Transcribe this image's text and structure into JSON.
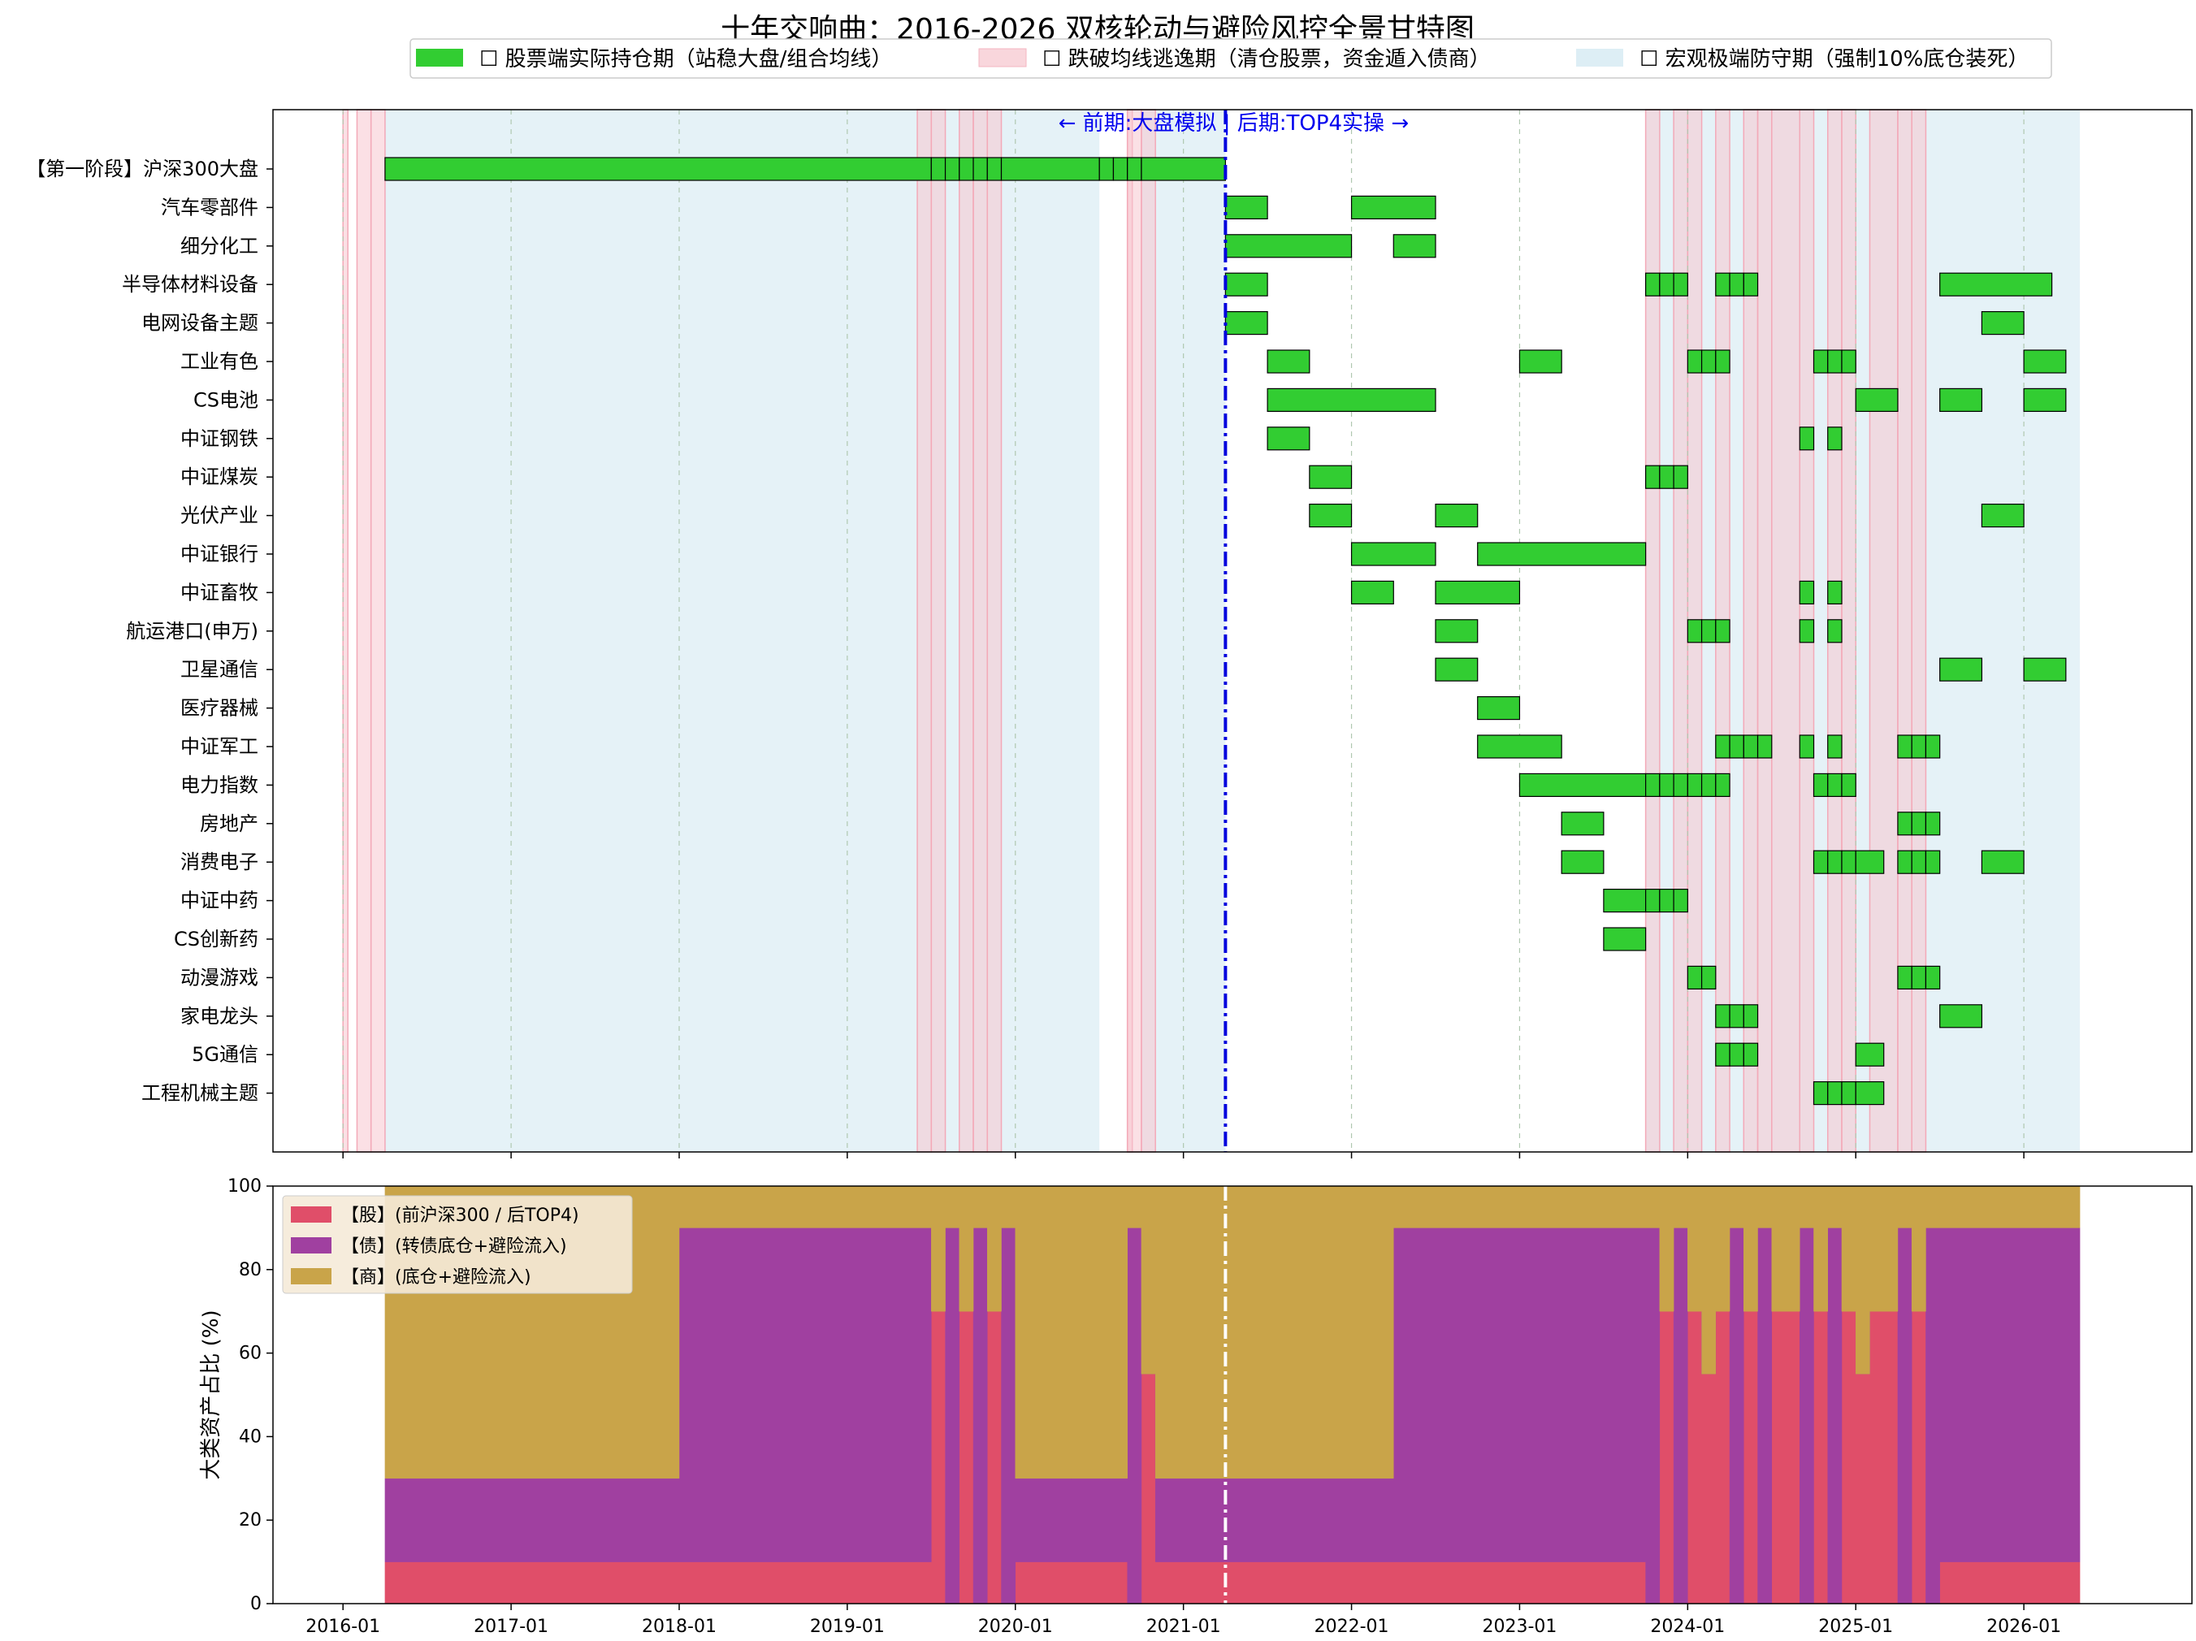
{
  "chart_data": [
    {
      "type": "gantt",
      "title": "十年交响曲：2016-2026 双核轮动与避险风控全景甘特图",
      "legend_placement": "top-center",
      "legend": [
        {
          "label": "☐ 股票端实际持仓期（站稳大盘/组合均线）",
          "color": "#32cd32"
        },
        {
          "label": "☐ 跌破均线逃逸期（清仓股票，资金遁入债商）",
          "color": "#f9d6dc"
        },
        {
          "label": "☐ 宏观极端防守期（强制10%底仓装死）",
          "color": "#ddeef5"
        }
      ],
      "x_ticks": [
        "2016-01",
        "2017-01",
        "2018-01",
        "2019-01",
        "2020-01",
        "2021-01",
        "2022-01",
        "2023-01",
        "2024-01",
        "2025-01",
        "2026-01"
      ],
      "xlim": [
        "2015-08",
        "2027-01"
      ],
      "divider": {
        "date": "2021-04",
        "label": "← 前期:大盘模拟 | 后期:TOP4实操 →"
      },
      "categories": [
        "【第一阶段】沪深300大盘",
        "汽车零部件",
        "细分化工",
        "半导体材料设备",
        "电网设备主题",
        "工业有色",
        "CS电池",
        "中证钢铁",
        "中证煤炭",
        "光伏产业",
        "中证银行",
        "中证畜牧",
        "航运港口(申万)",
        "卫星通信",
        "医疗器械",
        "中证军工",
        "电力指数",
        "房地产",
        "消费电子",
        "中证中药",
        "CS创新药",
        "动漫游戏",
        "家电龙头",
        "5G通信",
        "工程机械主题"
      ],
      "defense_periods": [
        [
          "2016-04",
          "2020-07"
        ],
        [
          "2020-10",
          "2021-04"
        ],
        [
          "2023-10",
          "2025-07"
        ],
        [
          "2025-07",
          "2026-05"
        ]
      ],
      "escape_periods": [
        [
          "2016-01",
          "2016-01"
        ],
        [
          "2016-02",
          "2016-03"
        ],
        [
          "2016-03",
          "2016-04"
        ],
        [
          "2019-06",
          "2019-07"
        ],
        [
          "2019-07",
          "2019-08"
        ],
        [
          "2019-09",
          "2019-10"
        ],
        [
          "2019-10",
          "2019-11"
        ],
        [
          "2019-11",
          "2019-12"
        ],
        [
          "2020-09",
          "2020-09"
        ],
        [
          "2020-09",
          "2020-10"
        ],
        [
          "2020-10",
          "2020-11"
        ],
        [
          "2023-10",
          "2023-11"
        ],
        [
          "2023-12",
          "2024-01"
        ],
        [
          "2024-01",
          "2024-02"
        ],
        [
          "2024-03",
          "2024-04"
        ],
        [
          "2024-05",
          "2024-06"
        ],
        [
          "2024-06",
          "2024-07"
        ],
        [
          "2024-07",
          "2024-09"
        ],
        [
          "2024-09",
          "2024-10"
        ],
        [
          "2024-11",
          "2024-12"
        ],
        [
          "2024-12",
          "2025-01"
        ],
        [
          "2025-02",
          "2025-04"
        ],
        [
          "2025-04",
          "2025-05"
        ],
        [
          "2025-05",
          "2025-06"
        ]
      ],
      "holdings": [
        [
          [
            "2016-04",
            "2019-07"
          ],
          [
            "2019-07",
            "2019-08"
          ],
          [
            "2019-08",
            "2019-09"
          ],
          [
            "2019-09",
            "2019-10"
          ],
          [
            "2019-10",
            "2019-11"
          ],
          [
            "2019-11",
            "2019-12"
          ],
          [
            "2019-12",
            "2020-07"
          ],
          [
            "2020-07",
            "2020-08"
          ],
          [
            "2020-08",
            "2020-09"
          ],
          [
            "2020-09",
            "2020-10"
          ],
          [
            "2020-10",
            "2021-04"
          ]
        ],
        [
          [
            "2021-04",
            "2021-07"
          ],
          [
            "2022-01",
            "2022-07"
          ]
        ],
        [
          [
            "2021-04",
            "2022-01"
          ],
          [
            "2022-04",
            "2022-07"
          ]
        ],
        [
          [
            "2021-04",
            "2021-07"
          ],
          [
            "2023-10",
            "2023-11"
          ],
          [
            "2023-11",
            "2023-12"
          ],
          [
            "2023-12",
            "2024-01"
          ],
          [
            "2024-03",
            "2024-04"
          ],
          [
            "2024-04",
            "2024-05"
          ],
          [
            "2024-05",
            "2024-06"
          ],
          [
            "2025-07",
            "2026-03"
          ]
        ],
        [
          [
            "2021-04",
            "2021-07"
          ],
          [
            "2025-10",
            "2026-01"
          ]
        ],
        [
          [
            "2021-07",
            "2021-10"
          ],
          [
            "2023-01",
            "2023-04"
          ],
          [
            "2024-01",
            "2024-02"
          ],
          [
            "2024-02",
            "2024-03"
          ],
          [
            "2024-03",
            "2024-04"
          ],
          [
            "2024-10",
            "2024-11"
          ],
          [
            "2024-11",
            "2024-12"
          ],
          [
            "2024-12",
            "2025-01"
          ],
          [
            "2026-01",
            "2026-04"
          ]
        ],
        [
          [
            "2021-07",
            "2022-07"
          ],
          [
            "2025-01",
            "2025-04"
          ],
          [
            "2025-07",
            "2025-10"
          ],
          [
            "2026-01",
            "2026-04"
          ]
        ],
        [
          [
            "2021-07",
            "2021-10"
          ],
          [
            "2024-09",
            "2024-10"
          ],
          [
            "2024-11",
            "2024-12"
          ]
        ],
        [
          [
            "2021-10",
            "2022-01"
          ],
          [
            "2023-10",
            "2023-11"
          ],
          [
            "2023-11",
            "2023-12"
          ],
          [
            "2023-12",
            "2024-01"
          ]
        ],
        [
          [
            "2021-10",
            "2022-01"
          ],
          [
            "2022-07",
            "2022-10"
          ],
          [
            "2025-10",
            "2026-01"
          ]
        ],
        [
          [
            "2022-01",
            "2022-07"
          ],
          [
            "2022-10",
            "2023-10"
          ]
        ],
        [
          [
            "2022-01",
            "2022-04"
          ],
          [
            "2022-07",
            "2023-01"
          ],
          [
            "2024-09",
            "2024-10"
          ],
          [
            "2024-11",
            "2024-12"
          ]
        ],
        [
          [
            "2022-07",
            "2022-10"
          ],
          [
            "2024-01",
            "2024-02"
          ],
          [
            "2024-02",
            "2024-03"
          ],
          [
            "2024-03",
            "2024-04"
          ],
          [
            "2024-09",
            "2024-10"
          ],
          [
            "2024-11",
            "2024-12"
          ]
        ],
        [
          [
            "2022-07",
            "2022-10"
          ],
          [
            "2025-07",
            "2025-10"
          ],
          [
            "2026-01",
            "2026-04"
          ]
        ],
        [
          [
            "2022-10",
            "2023-01"
          ]
        ],
        [
          [
            "2022-10",
            "2023-04"
          ],
          [
            "2024-03",
            "2024-04"
          ],
          [
            "2024-04",
            "2024-05"
          ],
          [
            "2024-05",
            "2024-06"
          ],
          [
            "2024-06",
            "2024-07"
          ],
          [
            "2024-09",
            "2024-10"
          ],
          [
            "2024-11",
            "2024-12"
          ],
          [
            "2025-04",
            "2025-05"
          ],
          [
            "2025-05",
            "2025-06"
          ],
          [
            "2025-06",
            "2025-07"
          ]
        ],
        [
          [
            "2023-01",
            "2023-10"
          ],
          [
            "2023-10",
            "2023-11"
          ],
          [
            "2023-11",
            "2023-12"
          ],
          [
            "2023-12",
            "2024-01"
          ],
          [
            "2024-01",
            "2024-02"
          ],
          [
            "2024-02",
            "2024-03"
          ],
          [
            "2024-03",
            "2024-04"
          ],
          [
            "2024-10",
            "2024-11"
          ],
          [
            "2024-11",
            "2024-12"
          ],
          [
            "2024-12",
            "2025-01"
          ]
        ],
        [
          [
            "2023-04",
            "2023-07"
          ],
          [
            "2025-04",
            "2025-05"
          ],
          [
            "2025-05",
            "2025-06"
          ],
          [
            "2025-06",
            "2025-07"
          ]
        ],
        [
          [
            "2023-04",
            "2023-07"
          ],
          [
            "2024-10",
            "2024-11"
          ],
          [
            "2024-11",
            "2024-12"
          ],
          [
            "2024-12",
            "2025-01"
          ],
          [
            "2025-01",
            "2025-03"
          ],
          [
            "2025-04",
            "2025-05"
          ],
          [
            "2025-05",
            "2025-06"
          ],
          [
            "2025-06",
            "2025-07"
          ],
          [
            "2025-10",
            "2026-01"
          ]
        ],
        [
          [
            "2023-07",
            "2023-10"
          ],
          [
            "2023-10",
            "2023-11"
          ],
          [
            "2023-11",
            "2023-12"
          ],
          [
            "2023-12",
            "2024-01"
          ]
        ],
        [
          [
            "2023-07",
            "2023-10"
          ]
        ],
        [
          [
            "2024-01",
            "2024-02"
          ],
          [
            "2024-02",
            "2024-03"
          ],
          [
            "2025-04",
            "2025-05"
          ],
          [
            "2025-05",
            "2025-06"
          ],
          [
            "2025-06",
            "2025-07"
          ]
        ],
        [
          [
            "2024-03",
            "2024-04"
          ],
          [
            "2024-04",
            "2024-05"
          ],
          [
            "2024-05",
            "2024-06"
          ],
          [
            "2025-07",
            "2025-10"
          ]
        ],
        [
          [
            "2024-03",
            "2024-04"
          ],
          [
            "2024-04",
            "2024-05"
          ],
          [
            "2024-05",
            "2024-06"
          ],
          [
            "2025-01",
            "2025-03"
          ]
        ],
        [
          [
            "2024-10",
            "2024-11"
          ],
          [
            "2024-11",
            "2024-12"
          ],
          [
            "2024-12",
            "2025-01"
          ],
          [
            "2025-01",
            "2025-03"
          ]
        ]
      ]
    },
    {
      "type": "area",
      "stacked": true,
      "ylabel": "大类资产占比 (%)",
      "ylim": [
        0,
        100
      ],
      "y_ticks": [
        0,
        20,
        40,
        60,
        80,
        100
      ],
      "legend_placement": "top-left",
      "x": [
        "2016-04",
        "2018-01",
        "2019-06",
        "2019-07",
        "2019-08",
        "2019-09",
        "2019-10",
        "2019-11",
        "2019-12",
        "2020-01",
        "2020-05",
        "2020-09",
        "2020-10",
        "2020-11",
        "2021-04",
        "2022-01",
        "2022-04",
        "2023-10",
        "2023-11",
        "2023-12",
        "2024-01",
        "2024-02",
        "2024-03",
        "2024-04",
        "2024-05",
        "2024-06",
        "2024-07",
        "2024-09",
        "2024-10",
        "2024-11",
        "2024-12",
        "2025-01",
        "2025-02",
        "2025-04",
        "2025-05",
        "2025-06",
        "2025-07",
        "2026-05"
      ],
      "series": [
        {
          "name": "【股】(前沪深300 / 后TOP4)",
          "color": "#e04e69",
          "values": [
            10,
            10,
            10,
            70,
            0,
            70,
            0,
            70,
            0,
            10,
            10,
            0,
            55,
            10,
            10,
            10,
            10,
            0,
            70,
            0,
            70,
            55,
            70,
            0,
            70,
            0,
            70,
            0,
            70,
            0,
            70,
            55,
            70,
            0,
            70,
            0,
            10,
            10
          ]
        },
        {
          "name": "【债】(转债底仓+避险流入)",
          "color": "#a040a0",
          "values": [
            20,
            80,
            80,
            0,
            90,
            0,
            90,
            0,
            90,
            20,
            20,
            90,
            0,
            20,
            20,
            20,
            80,
            90,
            0,
            90,
            0,
            0,
            0,
            90,
            0,
            90,
            0,
            90,
            0,
            90,
            0,
            0,
            0,
            90,
            0,
            90,
            80,
            80
          ]
        },
        {
          "name": "【商】(底仓+避险流入)",
          "color": "#c9a449",
          "values": [
            70,
            10,
            10,
            30,
            10,
            30,
            10,
            30,
            10,
            70,
            70,
            10,
            45,
            70,
            70,
            70,
            10,
            10,
            30,
            10,
            30,
            45,
            30,
            10,
            30,
            10,
            30,
            10,
            30,
            10,
            30,
            45,
            30,
            10,
            30,
            10,
            10,
            10
          ]
        }
      ],
      "divider": {
        "date": "2021-04"
      }
    }
  ]
}
